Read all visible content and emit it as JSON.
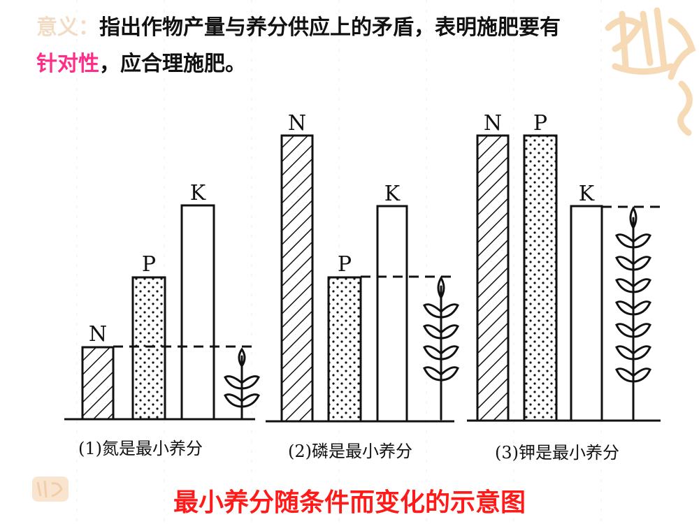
{
  "header": {
    "label": "意义：",
    "line1_text": "指出作物产量与养分供应上的矛盾，表明施肥要有",
    "highlight": "针对性",
    "line2_text": "，应合理施肥。"
  },
  "panels": [
    {
      "caption": "(1)氮是最小养分",
      "bars": [
        {
          "label": "N",
          "pattern": "hatch"
        },
        {
          "label": "P",
          "pattern": "dots"
        },
        {
          "label": "K",
          "pattern": "blank"
        }
      ]
    },
    {
      "caption": "(2)磷是最小养分",
      "bars": [
        {
          "label": "N",
          "pattern": "hatch"
        },
        {
          "label": "P",
          "pattern": "dots"
        },
        {
          "label": "K",
          "pattern": "blank"
        }
      ]
    },
    {
      "caption": "(3)钾是最小养分",
      "bars": [
        {
          "label": "N",
          "pattern": "hatch"
        },
        {
          "label": "P",
          "pattern": "dots"
        },
        {
          "label": "K",
          "pattern": "blank"
        }
      ]
    }
  ],
  "footer_title": "最小养分随条件而变化的示意图",
  "colors": {
    "title_red": "#ff1a1a",
    "highlight_pink": "#ff2d8a",
    "label_beige": "#f2dcc6",
    "deco_beige": "#f6d9b5"
  }
}
